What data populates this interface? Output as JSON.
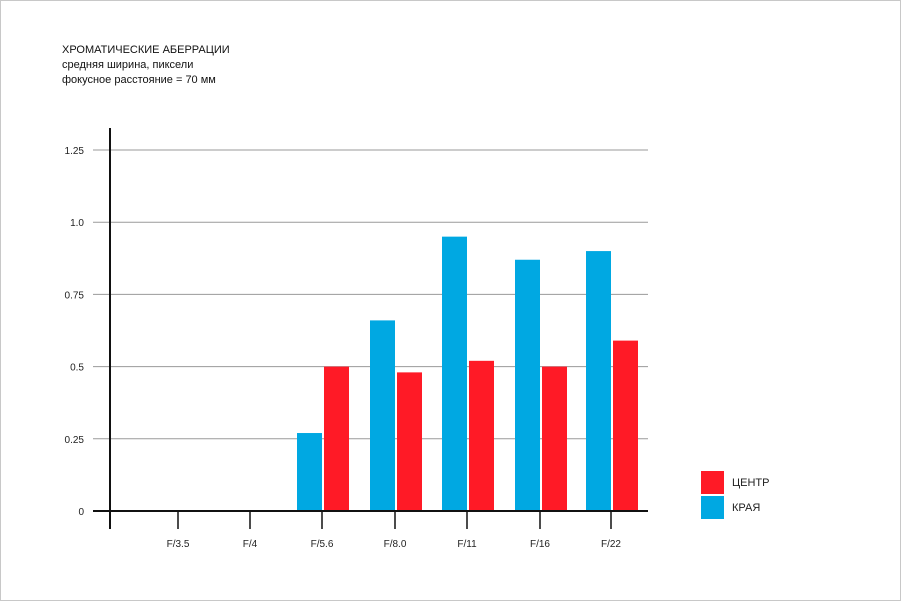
{
  "chart_data": {
    "type": "bar",
    "title": "ХРОМАТИЧЕСКИЕ АБЕРРАЦИИ",
    "subtitle_lines": [
      "средняя ширина, пиксели",
      "фокусное расстояние = 70 мм"
    ],
    "categories": [
      "F/3.5",
      "F/4",
      "F/5.6",
      "F/8.0",
      "F/11",
      "F/16",
      "F/22"
    ],
    "series": [
      {
        "name": "КРАЯ",
        "color": "#00a8e2",
        "values": [
          0,
          0,
          0.27,
          0.66,
          0.95,
          0.87,
          0.9
        ]
      },
      {
        "name": "ЦЕНТР",
        "color": "#ff1a26",
        "values": [
          0,
          0,
          0.5,
          0.48,
          0.52,
          0.5,
          0.59
        ]
      }
    ],
    "legend_order": [
      "ЦЕНТР",
      "КРАЯ"
    ],
    "y_ticks": [
      "0",
      "0.25",
      "0.5",
      "0.75",
      "1.0",
      "1.25"
    ],
    "ylim": [
      0,
      1.25
    ],
    "grid": true,
    "legend_position": "right"
  }
}
